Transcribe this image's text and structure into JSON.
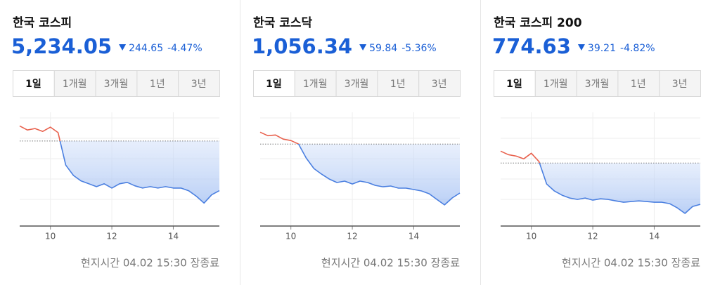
{
  "cards": [
    {
      "title": "한국 코스피",
      "price": "5,234.05",
      "change": "244.65",
      "change_pct": "-4.47%",
      "tabs": [
        "1일",
        "1개월",
        "3개월",
        "1년",
        "3년"
      ],
      "active_tab": 0,
      "chart": {
        "type": "line",
        "x": [
          9,
          9.25,
          9.5,
          9.75,
          10,
          10.25,
          10.5,
          10.75,
          11,
          11.25,
          11.5,
          11.75,
          12,
          12.25,
          12.5,
          12.75,
          13,
          13.25,
          13.5,
          13.75,
          14,
          14.25,
          14.5,
          14.75,
          15,
          15.25,
          15.5
        ],
        "values": [
          5553,
          5533,
          5540,
          5526,
          5547,
          5520,
          5360,
          5309,
          5282,
          5268,
          5254,
          5268,
          5247,
          5268,
          5275,
          5258,
          5247,
          5254,
          5247,
          5254,
          5247,
          5247,
          5234,
          5207,
          5173,
          5214,
          5234.05
        ],
        "reference": 5478.7,
        "xlim": [
          9,
          15.5
        ],
        "ylim": [
          5060,
          5620
        ],
        "xticks": [
          10,
          12,
          14
        ],
        "up_color": "#e8604c",
        "down_color": "#4a7fe0"
      },
      "footer": "현지시간 04.02 15:30 장종료"
    },
    {
      "title": "한국 코스닥",
      "price": "1,056.34",
      "change": "59.84",
      "change_pct": "-5.36%",
      "tabs": [
        "1일",
        "1개월",
        "3개월",
        "1년",
        "3년"
      ],
      "active_tab": 0,
      "chart": {
        "type": "line",
        "x": [
          9,
          9.25,
          9.5,
          9.75,
          10,
          10.25,
          10.5,
          10.75,
          11,
          11.25,
          11.5,
          11.75,
          12,
          12.25,
          12.5,
          12.75,
          13,
          13.25,
          13.5,
          13.75,
          14,
          14.25,
          14.5,
          14.75,
          15,
          15.25,
          15.5
        ],
        "values": [
          1130.7,
          1126.4,
          1127.3,
          1122.2,
          1120.5,
          1116.2,
          1099.1,
          1086.3,
          1079.4,
          1073.4,
          1069.2,
          1070.9,
          1067.4,
          1070.9,
          1069.2,
          1065.7,
          1064.0,
          1064.9,
          1062.3,
          1062.3,
          1060.6,
          1058.9,
          1055.5,
          1048.6,
          1041.8,
          1050.3,
          1056.34
        ],
        "reference": 1116.18,
        "xlim": [
          9,
          15.5
        ],
        "ylim": [
          1016,
          1155
        ],
        "xticks": [
          10,
          12,
          14
        ],
        "up_color": "#e8604c",
        "down_color": "#4a7fe0"
      },
      "footer": "현지시간 04.02 15:30 장종료"
    },
    {
      "title": "한국 코스피 200",
      "price": "774.63",
      "change": "39.21",
      "change_pct": "-4.82%",
      "tabs": [
        "1일",
        "1개월",
        "3개월",
        "1년",
        "3년"
      ],
      "active_tab": 0,
      "chart": {
        "type": "line",
        "x": [
          9,
          9.25,
          9.5,
          9.75,
          10,
          10.25,
          10.5,
          10.75,
          11,
          11.25,
          11.5,
          11.75,
          12,
          12.25,
          12.5,
          12.75,
          13,
          13.25,
          13.5,
          13.75,
          14,
          14.25,
          14.5,
          14.75,
          15,
          15.25,
          15.5
        ],
        "values": [
          825.1,
          821.8,
          820.5,
          817.8,
          823.1,
          815.2,
          793.9,
          787.3,
          783.3,
          780.6,
          779.3,
          780.6,
          778.6,
          779.9,
          779.3,
          777.9,
          776.6,
          777.3,
          777.9,
          777.3,
          776.6,
          776.6,
          775.3,
          771.3,
          766.0,
          772.6,
          774.63
        ],
        "reference": 813.84,
        "xlim": [
          9,
          15.5
        ],
        "ylim": [
          754,
          862
        ],
        "xticks": [
          10,
          12,
          14
        ],
        "up_color": "#e8604c",
        "down_color": "#4a7fe0"
      },
      "footer": "현지시간 04.02 15:30 장종료"
    }
  ]
}
